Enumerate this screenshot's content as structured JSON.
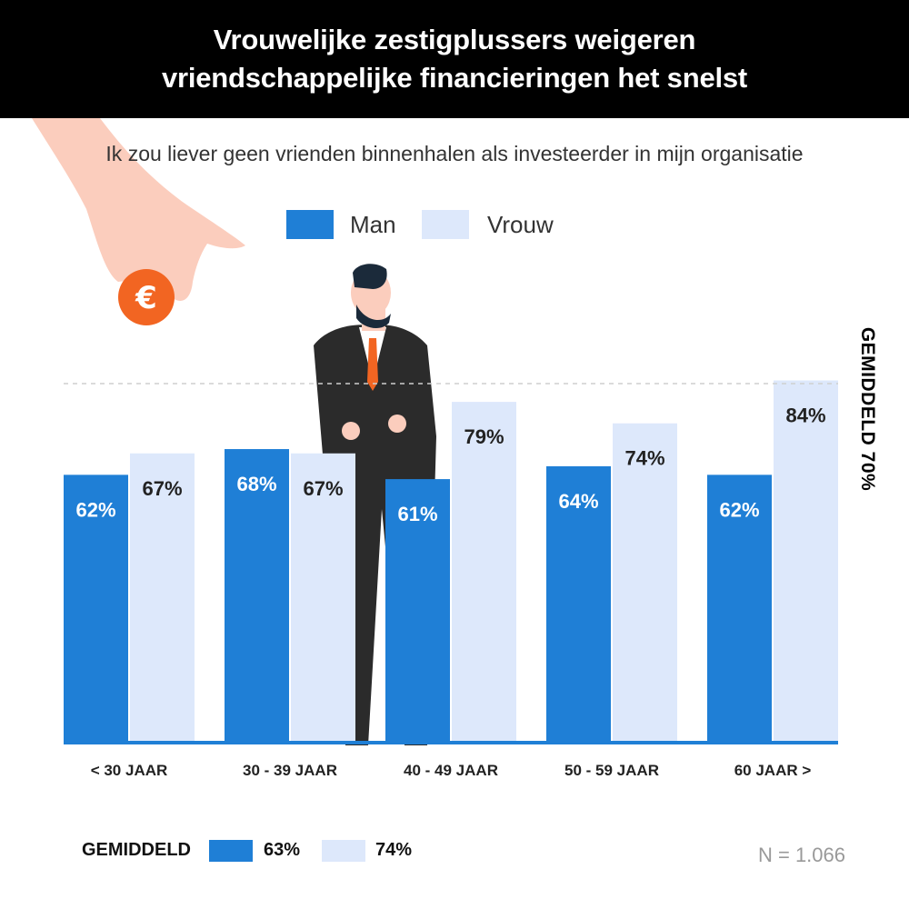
{
  "header": {
    "title_line1": "Vrouwelijke zestigplussers weigeren",
    "title_line2": "vriendschappelijke financieringen het snelst"
  },
  "subtitle": "Ik zou liever geen vrienden binnenhalen als investeerder in mijn organisatie",
  "legend": [
    {
      "label": "Man",
      "color": "#1f7fd6"
    },
    {
      "label": "Vrouw",
      "color": "#dde8fb"
    }
  ],
  "chart_data": {
    "type": "bar",
    "categories": [
      "< 30 JAAR",
      "30 - 39 JAAR",
      "40 - 49 JAAR",
      "50 - 59 JAAR",
      "60 JAAR >"
    ],
    "series": [
      {
        "name": "Man",
        "values": [
          62,
          68,
          61,
          64,
          62
        ],
        "labels": [
          "62%",
          "68%",
          "61%",
          "64%",
          "62%"
        ],
        "color": "#1f7fd6"
      },
      {
        "name": "Vrouw",
        "values": [
          67,
          67,
          79,
          74,
          84
        ],
        "labels": [
          "67%",
          "67%",
          "79%",
          "74%",
          "84%"
        ],
        "color": "#dde8fb"
      }
    ],
    "ylim": [
      0,
      100
    ],
    "reference_line": {
      "value": 70,
      "label": "GEMIDDELD 70%",
      "style": "dashed"
    },
    "grid": false
  },
  "footer": {
    "average_label": "GEMIDDELD",
    "man_average": "63%",
    "vrouw_average": "74%",
    "sample_size": "N = 1.066"
  },
  "decorations": {
    "euro_coin": {
      "icon": "euro-coin-icon",
      "symbol": "€",
      "color": "#f26522"
    },
    "hand": {
      "icon": "hand-illustration",
      "color": "#fbcdbd"
    },
    "businessman": {
      "icon": "businessman-illustration",
      "suit_color": "#2b2b2b",
      "tie_color": "#f26522"
    }
  }
}
